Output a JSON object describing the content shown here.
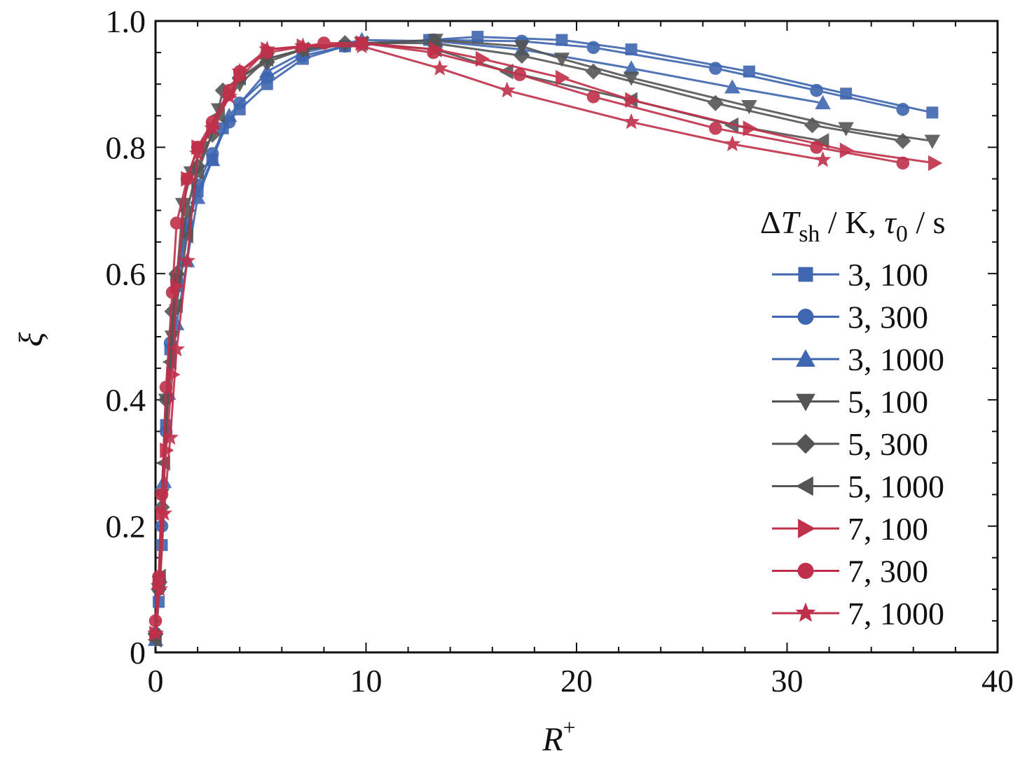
{
  "chart_data": {
    "type": "line",
    "title": "",
    "xlabel": "R",
    "xlabel_sup": "+",
    "ylabel": "ξ",
    "xlim": [
      0,
      40
    ],
    "ylim": [
      0,
      1.0
    ],
    "xticks": [
      0,
      10,
      20,
      30,
      40
    ],
    "xtick_labels": [
      "0",
      "10",
      "20",
      "30",
      "40"
    ],
    "yticks": [
      0,
      0.2,
      0.4,
      0.6,
      0.8,
      1.0
    ],
    "ytick_labels": [
      "0",
      "0.2",
      "0.4",
      "0.6",
      "0.8",
      "1.0"
    ],
    "grid": false,
    "legend": {
      "placement": "right",
      "title_delta": "Δ",
      "title_T": "T",
      "title_sh": "sh",
      "title_mid": " / K, ",
      "title_tau": "τ",
      "title_zero": "0",
      "title_end": "  / s"
    },
    "colors": {
      "blue": "#3f66b0",
      "gray": "#555555",
      "red": "#c0304a"
    },
    "series": [
      {
        "name": "3, 100",
        "color": "#3f66b0",
        "marker": "square",
        "x": [
          0,
          0.15,
          0.3,
          0.5,
          0.7,
          1.0,
          1.5,
          2.0,
          2.7,
          3.2,
          4.0,
          5.3,
          7.0,
          9.0,
          13.0,
          15.3,
          19.3,
          22.6,
          28.2,
          32.8,
          36.9
        ],
        "y": [
          0.02,
          0.08,
          0.17,
          0.36,
          0.48,
          0.58,
          0.67,
          0.73,
          0.78,
          0.83,
          0.86,
          0.9,
          0.94,
          0.96,
          0.97,
          0.975,
          0.97,
          0.955,
          0.92,
          0.885,
          0.855
        ]
      },
      {
        "name": "3, 300",
        "color": "#3f66b0",
        "marker": "circle",
        "x": [
          0,
          0.15,
          0.3,
          0.5,
          0.7,
          1.0,
          1.5,
          2.0,
          2.7,
          3.5,
          4.0,
          5.3,
          7.0,
          9.0,
          13.2,
          17.4,
          20.8,
          26.6,
          31.4,
          35.5
        ],
        "y": [
          0.03,
          0.1,
          0.2,
          0.35,
          0.49,
          0.59,
          0.68,
          0.74,
          0.79,
          0.84,
          0.87,
          0.91,
          0.945,
          0.96,
          0.97,
          0.968,
          0.958,
          0.925,
          0.89,
          0.86
        ]
      },
      {
        "name": "3, 1000",
        "color": "#3f66b0",
        "marker": "triangle-up",
        "x": [
          0,
          0.2,
          0.4,
          0.6,
          1.0,
          1.5,
          2.0,
          2.7,
          3.5,
          5.3,
          7.0,
          9.8,
          13.3,
          17.4,
          22.6,
          27.4,
          31.7
        ],
        "y": [
          0.02,
          0.12,
          0.27,
          0.41,
          0.52,
          0.62,
          0.72,
          0.78,
          0.85,
          0.92,
          0.95,
          0.97,
          0.968,
          0.955,
          0.925,
          0.895,
          0.87
        ]
      },
      {
        "name": "5, 100",
        "color": "#555555",
        "marker": "triangle-down",
        "x": [
          0,
          0.15,
          0.3,
          0.5,
          0.8,
          1.0,
          1.3,
          1.7,
          2.2,
          3.0,
          4.0,
          5.3,
          7.0,
          9.8,
          13.3,
          17.4,
          19.3,
          22.6,
          28.2,
          32.8,
          36.9
        ],
        "y": [
          0.02,
          0.1,
          0.25,
          0.4,
          0.5,
          0.59,
          0.71,
          0.76,
          0.8,
          0.86,
          0.9,
          0.94,
          0.955,
          0.965,
          0.97,
          0.96,
          0.94,
          0.91,
          0.865,
          0.83,
          0.81
        ]
      },
      {
        "name": "5, 300",
        "color": "#555555",
        "marker": "diamond",
        "x": [
          0,
          0.15,
          0.3,
          0.5,
          0.8,
          1.0,
          1.5,
          2.0,
          2.7,
          3.2,
          4.0,
          5.3,
          7.0,
          9.0,
          13.2,
          17.4,
          20.8,
          26.6,
          31.2,
          35.5
        ],
        "y": [
          0.03,
          0.1,
          0.23,
          0.4,
          0.54,
          0.6,
          0.7,
          0.77,
          0.82,
          0.89,
          0.91,
          0.935,
          0.955,
          0.965,
          0.965,
          0.945,
          0.92,
          0.87,
          0.835,
          0.81
        ]
      },
      {
        "name": "5, 1000",
        "color": "#555555",
        "marker": "triangle-left",
        "x": [
          0,
          0.2,
          0.4,
          0.7,
          1.0,
          1.5,
          2.0,
          3.0,
          4.0,
          5.3,
          7.0,
          9.8,
          13.3,
          16.7,
          22.6,
          27.4,
          31.7
        ],
        "y": [
          0.02,
          0.12,
          0.3,
          0.46,
          0.55,
          0.66,
          0.76,
          0.85,
          0.91,
          0.94,
          0.955,
          0.965,
          0.955,
          0.92,
          0.875,
          0.835,
          0.81
        ]
      },
      {
        "name": "7, 100",
        "color": "#c0304a",
        "marker": "triangle-right",
        "x": [
          0,
          0.15,
          0.3,
          0.5,
          0.8,
          1.0,
          1.5,
          2.0,
          2.7,
          3.5,
          4.0,
          5.3,
          7.0,
          9.8,
          13.3,
          15.5,
          19.3,
          22.6,
          28.2,
          32.8,
          37.0
        ],
        "y": [
          0.03,
          0.11,
          0.22,
          0.32,
          0.44,
          0.58,
          0.75,
          0.8,
          0.83,
          0.88,
          0.91,
          0.955,
          0.96,
          0.965,
          0.955,
          0.94,
          0.91,
          0.875,
          0.83,
          0.795,
          0.775
        ]
      },
      {
        "name": "7, 300",
        "color": "#c0304a",
        "marker": "circle",
        "x": [
          0,
          0.15,
          0.3,
          0.5,
          0.8,
          1.0,
          1.5,
          2.0,
          2.7,
          3.5,
          4.0,
          5.3,
          8.0,
          9.8,
          13.2,
          17.3,
          20.8,
          26.6,
          31.4,
          35.5
        ],
        "y": [
          0.05,
          0.12,
          0.25,
          0.42,
          0.57,
          0.68,
          0.75,
          0.8,
          0.84,
          0.89,
          0.92,
          0.95,
          0.965,
          0.965,
          0.95,
          0.915,
          0.88,
          0.83,
          0.8,
          0.775
        ]
      },
      {
        "name": "7, 1000",
        "color": "#c0304a",
        "marker": "star",
        "x": [
          0,
          0.2,
          0.4,
          0.7,
          1.0,
          1.5,
          2.0,
          2.7,
          3.5,
          4.0,
          5.3,
          7.0,
          9.8,
          13.5,
          16.7,
          22.6,
          27.4,
          31.7
        ],
        "y": [
          0.03,
          0.1,
          0.22,
          0.34,
          0.48,
          0.62,
          0.79,
          0.83,
          0.88,
          0.92,
          0.955,
          0.96,
          0.96,
          0.925,
          0.89,
          0.84,
          0.805,
          0.78
        ]
      }
    ]
  }
}
